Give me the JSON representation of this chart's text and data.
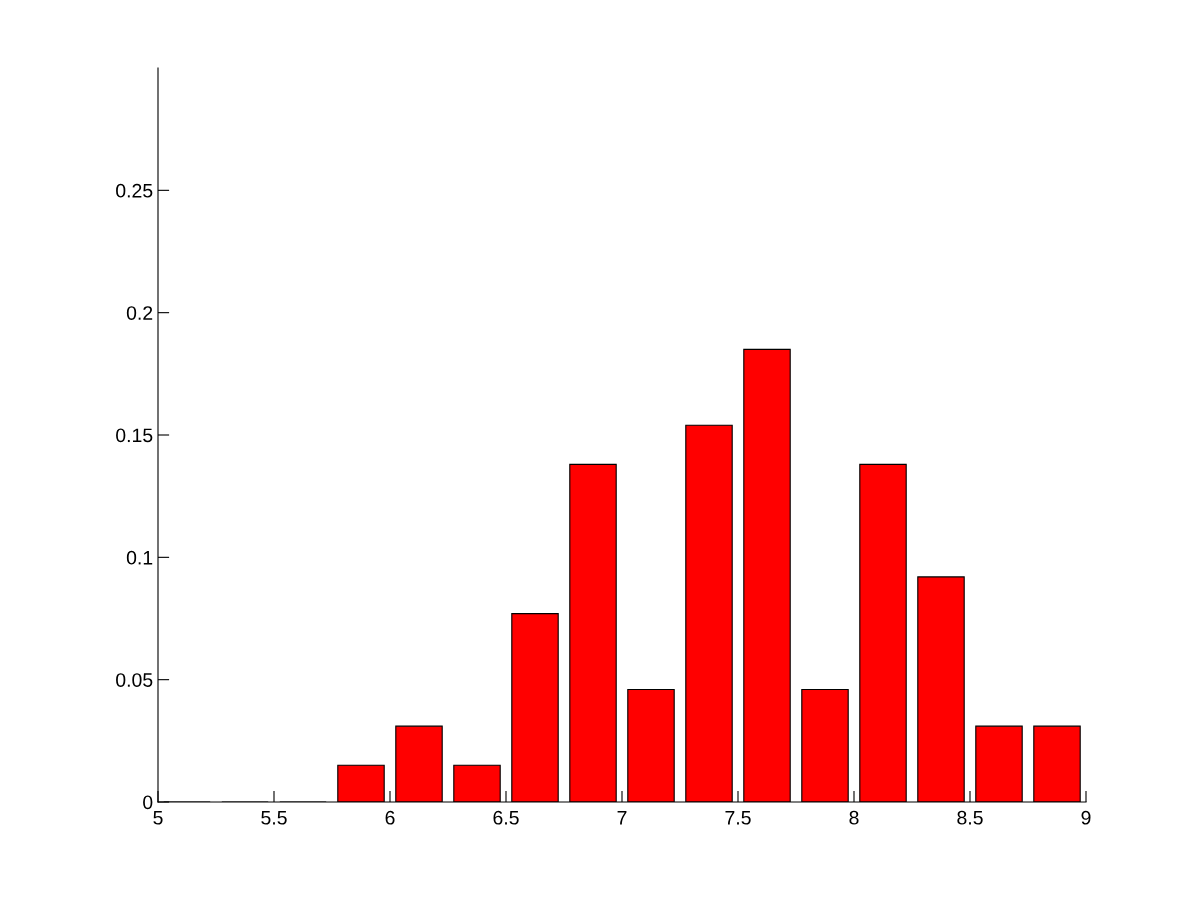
{
  "chart_data": {
    "type": "histogram",
    "bins": [
      5,
      5.25,
      5.5,
      5.75,
      6,
      6.25,
      6.5,
      6.75,
      7,
      7.25,
      7.5,
      7.75,
      8,
      8.25,
      8.5,
      8.75,
      9
    ],
    "values": [
      0,
      0,
      0,
      0.015,
      0.031,
      0.015,
      0.077,
      0.138,
      0.046,
      0.154,
      0.185,
      0.046,
      0.138,
      0.092,
      0.031,
      0.031
    ],
    "color": "#ff0000",
    "xlim": [
      5,
      9
    ],
    "xticks": [
      5,
      5.5,
      6,
      6.5,
      7,
      7.5,
      8,
      8.5,
      9
    ],
    "ylim": [
      0,
      0.3
    ],
    "yticks": [
      0,
      0.05,
      0.1,
      0.15,
      0.2,
      0.25
    ],
    "grid": false
  }
}
